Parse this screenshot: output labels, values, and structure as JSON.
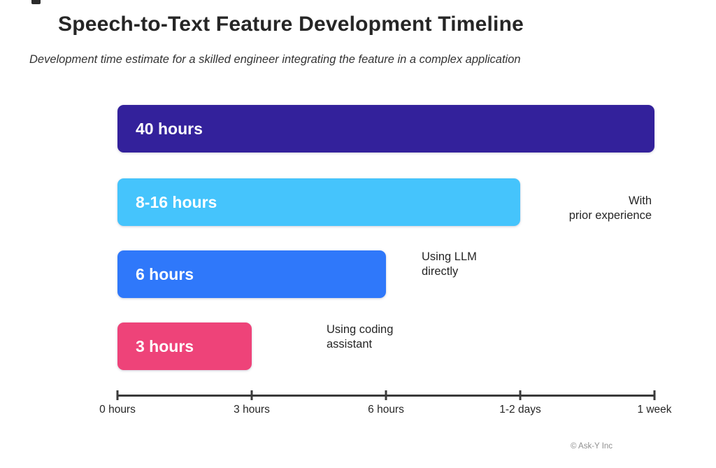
{
  "chart_data": {
    "type": "bar",
    "orientation": "horizontal",
    "title": "Speech-to-Text Feature Development Timeline",
    "subtitle": "Development time estimate for a skilled engineer integrating the feature in a complex application",
    "x_axis_ticks": [
      "0 hours",
      "3 hours",
      "6 hours",
      "1-2 days",
      "1 week"
    ],
    "axis_scale_note": "non-linear scale; ticks evenly spaced",
    "grid": false,
    "bars": [
      {
        "label": "40 hours",
        "color": "#33219b",
        "start_tick": "0 hours",
        "end_tick": "1 week",
        "span_ticks": 4,
        "annotation": "",
        "annotation_lines": []
      },
      {
        "label": "8-16 hours",
        "color": "#45c4fc",
        "start_tick": "0 hours",
        "end_tick": "1-2 days",
        "span_ticks": 3,
        "annotation": "With prior experience",
        "annotation_lines": [
          "With",
          "prior experience"
        ]
      },
      {
        "label": "6 hours",
        "color": "#2f78fa",
        "start_tick": "0 hours",
        "end_tick": "6 hours",
        "span_ticks": 2,
        "annotation": "Using LLM directly",
        "annotation_lines": [
          "Using LLM",
          "directly"
        ]
      },
      {
        "label": "3 hours",
        "color": "#ee4379",
        "start_tick": "0 hours",
        "end_tick": "3 hours",
        "span_ticks": 1,
        "annotation": "Using coding assistant",
        "annotation_lines": [
          "Using coding",
          "assistant"
        ]
      }
    ],
    "footer": "© Ask-Y Inc"
  }
}
